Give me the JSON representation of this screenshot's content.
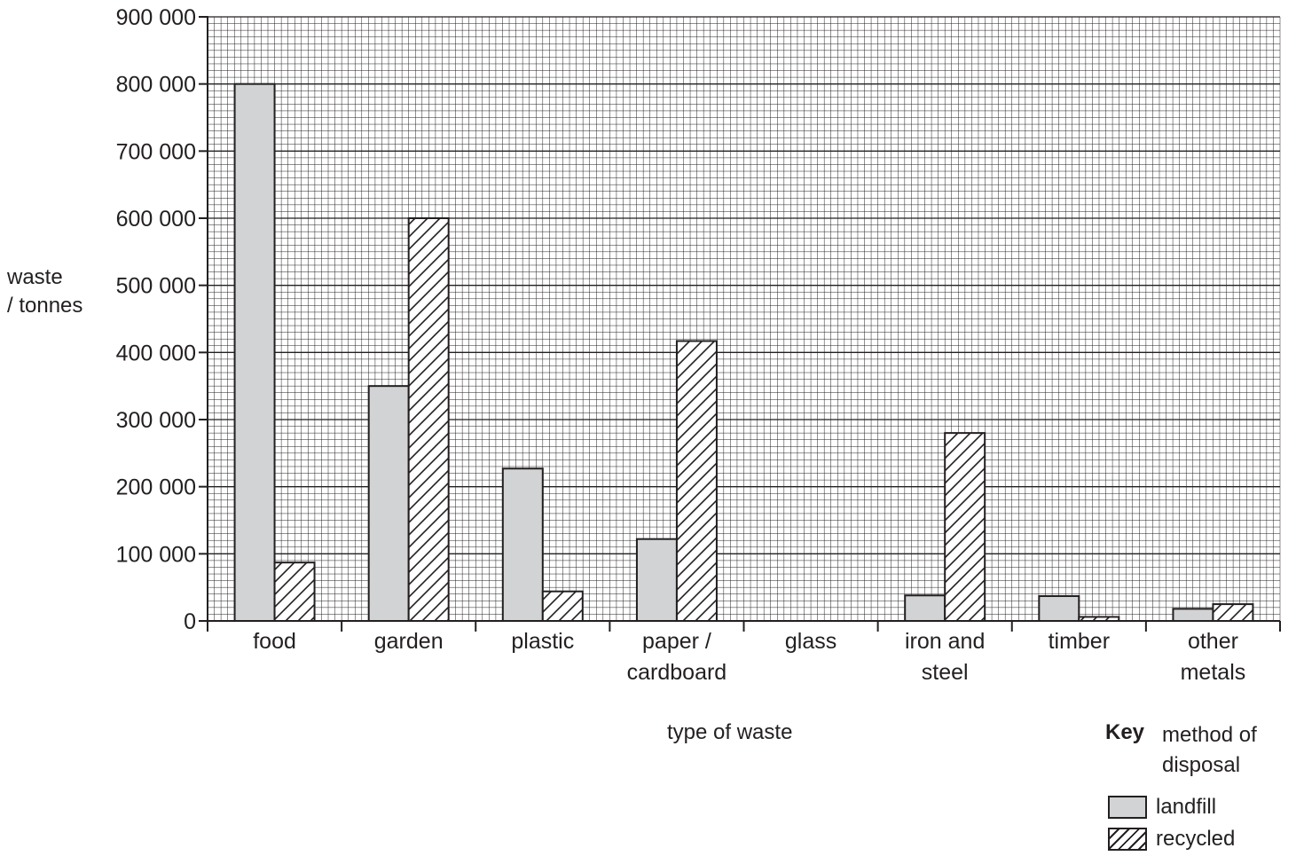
{
  "chart_data": {
    "type": "bar",
    "xlabel": "type of waste",
    "ylabel_line1": "waste",
    "ylabel_line2": "/ tonnes",
    "ylim": [
      0,
      900000
    ],
    "yticks": [
      "0",
      "100 000",
      "200 000",
      "300 000",
      "400 000",
      "500 000",
      "600 000",
      "700 000",
      "800 000",
      "900 000"
    ],
    "categories": [
      [
        "food"
      ],
      [
        "garden"
      ],
      [
        "plastic"
      ],
      [
        "paper /",
        "cardboard"
      ],
      [
        "glass"
      ],
      [
        "iron and",
        "steel"
      ],
      [
        "timber"
      ],
      [
        "other",
        "metals"
      ]
    ],
    "series": [
      {
        "name": "landfill",
        "values": [
          800000,
          350000,
          227000,
          122000,
          0,
          38000,
          37000,
          18000
        ]
      },
      {
        "name": "recycled",
        "values": [
          87000,
          600000,
          44000,
          417000,
          0,
          280000,
          6000,
          25000
        ]
      }
    ],
    "grid": true,
    "legend_position": "bottom-right"
  },
  "key": {
    "title": "Key",
    "subtitle": "method of disposal",
    "items": [
      "landfill",
      "recycled"
    ]
  },
  "colors": {
    "landfill": "#d1d3d4",
    "ink": "#231f20"
  }
}
